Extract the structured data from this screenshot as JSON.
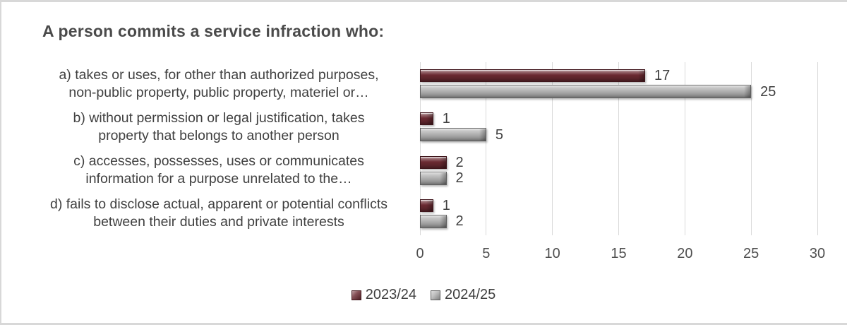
{
  "frame": {
    "background": "#ffffff",
    "border_color": "#d8d8d8"
  },
  "title": "A person commits a service infraction who:",
  "chart_data": {
    "type": "bar",
    "orientation": "horizontal",
    "title": "A person commits a service infraction who:",
    "categories": [
      [
        "a) takes or uses, for other than authorized purposes,",
        "non-public property, public property, materiel or…"
      ],
      [
        "b) without permission or legal justification, takes",
        "property that belongs to another person"
      ],
      [
        "c) accesses, possesses, uses or communicates",
        "information for a purpose unrelated to the…"
      ],
      [
        "d) fails to disclose actual, apparent or potential conflicts",
        "between their duties and private interests"
      ]
    ],
    "series": [
      {
        "name": "2023/24",
        "color": "#6b2a32",
        "border_color": "#3f151b",
        "values": [
          17,
          1,
          2,
          1
        ]
      },
      {
        "name": "2024/25",
        "color": "#b3b3b3",
        "border_color": "#5f5f5f",
        "values": [
          25,
          5,
          2,
          2
        ]
      }
    ],
    "xlabel": "",
    "ylabel": "",
    "xlim": [
      0,
      30
    ],
    "xticks": [
      "0",
      "5",
      "10",
      "15",
      "20",
      "25",
      "30"
    ],
    "grid": true,
    "gridline_color": "#d9d9d9",
    "data_labels_shown": true,
    "legend_position": "bottom",
    "title_color": "#4a4a4a",
    "label_color": "#404040",
    "tick_color": "#4e4e4e"
  }
}
